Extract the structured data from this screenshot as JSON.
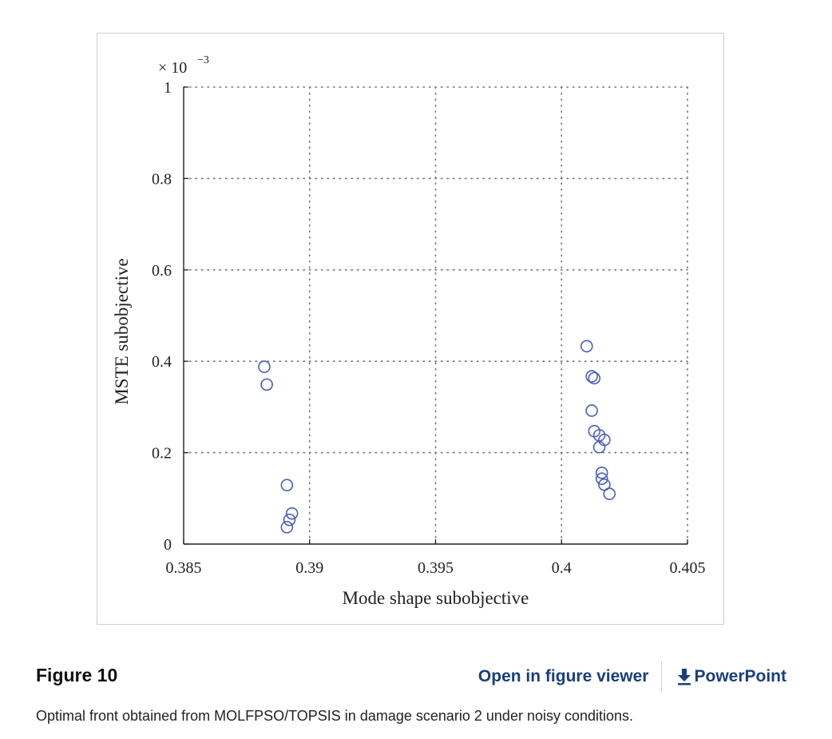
{
  "figure": {
    "label": "Figure 10",
    "caption": "Optimal front obtained from MOLFPSO/TOPSIS in damage scenario 2 under noisy conditions.",
    "open_viewer_label": "Open in figure viewer",
    "powerpoint_label": "PowerPoint",
    "download_icon": "download-arrow-icon",
    "link_color": "#1a3f7a"
  },
  "chart_data": {
    "type": "scatter",
    "xlabel": "Mode shape subobjective",
    "ylabel": "MSTE subobjective",
    "y_scale_label": "× 10",
    "y_scale_exponent": "−3",
    "xlim": [
      0.385,
      0.405
    ],
    "ylim": [
      0,
      1
    ],
    "x_ticks": [
      0.385,
      0.39,
      0.395,
      0.4,
      0.405
    ],
    "x_tick_labels": [
      "0.385",
      "0.39",
      "0.395",
      "0.4",
      "0.405"
    ],
    "y_ticks": [
      0,
      0.2,
      0.4,
      0.6,
      0.8,
      1
    ],
    "y_tick_labels": [
      "0",
      "0.2",
      "0.4",
      "0.6",
      "0.8",
      "1"
    ],
    "grid": true,
    "marker": "open-circle",
    "marker_color": "#4a5fb5",
    "series": [
      {
        "points": [
          [
            0.3882,
            0.388
          ],
          [
            0.3883,
            0.349
          ],
          [
            0.3891,
            0.129
          ],
          [
            0.3893,
            0.067
          ],
          [
            0.3892,
            0.053
          ],
          [
            0.3891,
            0.037
          ],
          [
            0.401,
            0.433
          ],
          [
            0.4012,
            0.367
          ],
          [
            0.4013,
            0.363
          ],
          [
            0.4012,
            0.292
          ],
          [
            0.4013,
            0.247
          ],
          [
            0.4015,
            0.238
          ],
          [
            0.4017,
            0.228
          ],
          [
            0.4015,
            0.212
          ],
          [
            0.4016,
            0.156
          ],
          [
            0.4016,
            0.143
          ],
          [
            0.4017,
            0.13
          ],
          [
            0.4019,
            0.11
          ]
        ]
      }
    ]
  }
}
